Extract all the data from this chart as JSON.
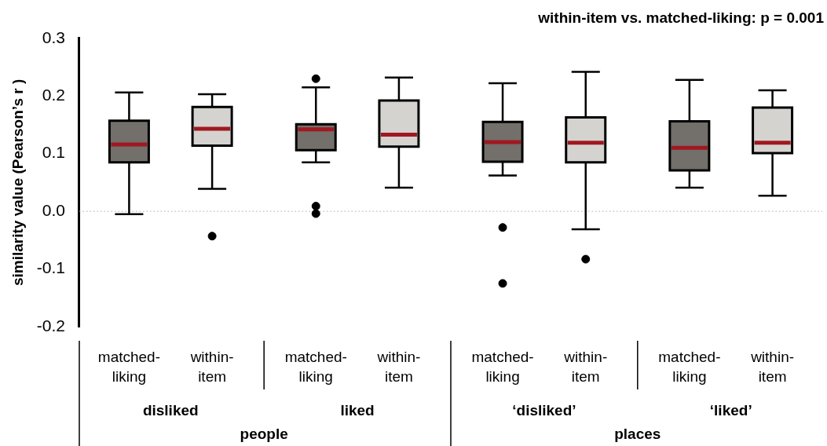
{
  "chart_data": {
    "type": "box",
    "title": "within-item vs. matched-liking: p = 0.001",
    "ylabel": "similarity value (Pearson’s r )",
    "categories": [
      "matched-liking",
      "within-item",
      "matched-liking",
      "within-item",
      "matched-liking",
      "within-item",
      "matched-liking",
      "within-item"
    ],
    "colors": [
      "#736f6a",
      "#d4d3cf",
      "#736f6a",
      "#d4d3cf",
      "#736f6a",
      "#d4d3cf",
      "#736f6a",
      "#d4d3cf"
    ],
    "boxes": [
      {
        "low": -0.005,
        "q1": 0.085,
        "median": 0.116,
        "q3": 0.157,
        "high": 0.206
      },
      {
        "low": 0.039,
        "q1": 0.114,
        "median": 0.143,
        "q3": 0.181,
        "high": 0.203,
        "outliers": [
          -0.043
        ]
      },
      {
        "low": 0.085,
        "q1": 0.106,
        "median": 0.142,
        "q3": 0.151,
        "high": 0.215,
        "outliers": [
          0.23,
          0.009,
          -0.004
        ]
      },
      {
        "low": 0.041,
        "q1": 0.112,
        "median": 0.133,
        "q3": 0.192,
        "high": 0.232
      },
      {
        "low": 0.062,
        "q1": 0.086,
        "median": 0.12,
        "q3": 0.155,
        "high": 0.222,
        "outliers": [
          -0.028,
          -0.125
        ]
      },
      {
        "low": -0.031,
        "q1": 0.085,
        "median": 0.119,
        "q3": 0.163,
        "high": 0.242,
        "outliers": [
          -0.083
        ]
      },
      {
        "low": 0.041,
        "q1": 0.071,
        "median": 0.11,
        "q3": 0.156,
        "high": 0.228
      },
      {
        "low": 0.027,
        "q1": 0.101,
        "median": 0.119,
        "q3": 0.18,
        "high": 0.21
      }
    ],
    "ylim": [
      -0.2,
      0.3
    ],
    "yticks": [
      {
        "value": -0.2,
        "label": "-0.2"
      },
      {
        "value": -0.1,
        "label": "-0.1"
      },
      {
        "value": 0,
        "label": "0.0"
      },
      {
        "value": 0.1,
        "label": "0.1"
      },
      {
        "value": 0.2,
        "label": "0.2"
      },
      {
        "value": 0.3,
        "label": "0.3"
      }
    ],
    "ref_lines": [
      {
        "axis": "y",
        "value": 0,
        "color": "#aaaaaa",
        "line_style": "dotted"
      }
    ],
    "annotations": [
      "disliked",
      "liked",
      "‘disliked’",
      "‘liked’",
      "people",
      "places"
    ],
    "grid": false,
    "legend": false
  }
}
